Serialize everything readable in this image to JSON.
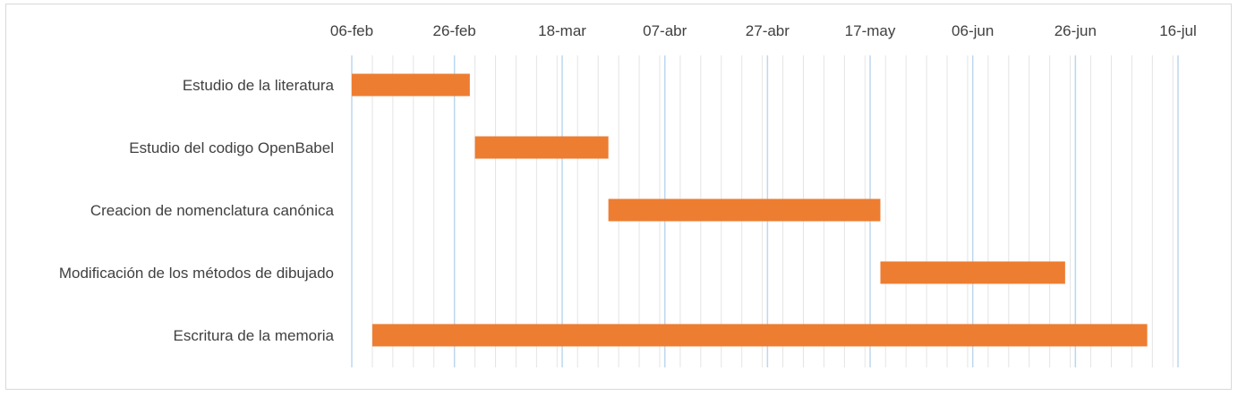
{
  "chart_data": {
    "type": "gantt",
    "title": "",
    "xlabel": "",
    "ylabel": "",
    "x_axis": {
      "position": "top",
      "range": [
        "2016-02-06",
        "2016-07-16"
      ],
      "tick_labels": [
        "06-feb",
        "26-feb",
        "18-mar",
        "07-abr",
        "27-abr",
        "17-may",
        "06-jun",
        "26-jun",
        "16-jul"
      ],
      "tick_dates": [
        "2016-02-06",
        "2016-02-26",
        "2016-03-18",
        "2016-04-07",
        "2016-04-27",
        "2016-05-17",
        "2016-06-06",
        "2016-06-26",
        "2016-07-16"
      ],
      "minor_gridline_every_days": 4
    },
    "grid": true,
    "legend": "none",
    "bar_color": "#ED7D31",
    "major_grid_color": "#BDD7EE",
    "minor_grid_color": "#E4E4E4",
    "tasks": [
      {
        "label": "Estudio de la literatura",
        "start": "2016-02-06",
        "end": "2016-02-29"
      },
      {
        "label": "Estudio del codigo OpenBabel",
        "start": "2016-03-01",
        "end": "2016-03-27"
      },
      {
        "label": "Creacion de nomenclatura canónica",
        "start": "2016-03-27",
        "end": "2016-05-19"
      },
      {
        "label": "Modificación de los métodos de dibujado",
        "start": "2016-05-19",
        "end": "2016-06-24"
      },
      {
        "label": "Escritura de la memoria",
        "start": "2016-02-10",
        "end": "2016-07-10"
      }
    ]
  }
}
